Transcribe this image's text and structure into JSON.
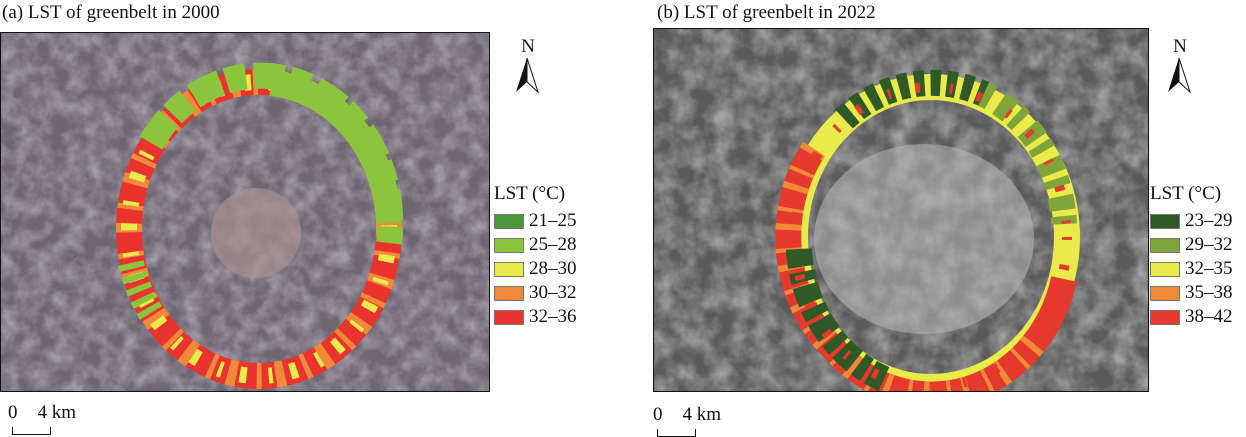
{
  "panels": [
    {
      "title": "(a) LST of greenbelt in 2000",
      "legend": {
        "title": "LST (°C)",
        "items": [
          {
            "label": "21–25",
            "color": "#4a9a3a"
          },
          {
            "label": "25–28",
            "color": "#8cc43e"
          },
          {
            "label": "28–30",
            "color": "#eaea4a"
          },
          {
            "label": "30–32",
            "color": "#f08a3a"
          },
          {
            "label": "32–36",
            "color": "#e8342c"
          }
        ]
      },
      "north": "N",
      "scale": {
        "zero": "0",
        "end": "4 km"
      }
    },
    {
      "title": "(b) LST of greenbelt in 2022",
      "legend": {
        "title": "LST (°C)",
        "items": [
          {
            "label": "23–29",
            "color": "#2f5a28"
          },
          {
            "label": "29–32",
            "color": "#7ea43a"
          },
          {
            "label": "32–35",
            "color": "#eaea4a"
          },
          {
            "label": "35–38",
            "color": "#f08a38"
          },
          {
            "label": "38–42",
            "color": "#e4392c"
          }
        ]
      },
      "north": "N",
      "scale": {
        "zero": "0",
        "end": "4 km"
      }
    }
  ]
}
